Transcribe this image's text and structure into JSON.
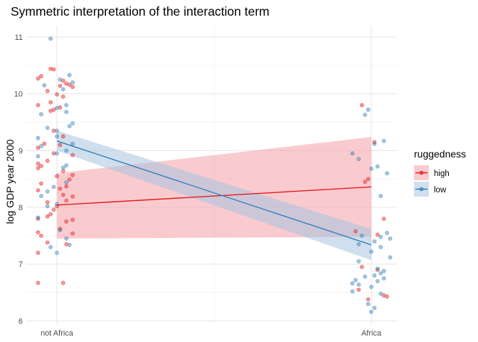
{
  "chart_data": {
    "type": "scatter",
    "title": "Symmetric interpretation of the interaction term",
    "xlabel": "",
    "ylabel": "log GDP year 2000",
    "categories": [
      "not Africa",
      "Africa"
    ],
    "ylim": [
      5.93,
      11.2
    ],
    "yticks": [
      6,
      7,
      8,
      9,
      10,
      11
    ],
    "grid": true,
    "legend": {
      "title": "ruggedness",
      "position": "right"
    },
    "series": [
      {
        "name": "high",
        "color": "#e41a1c",
        "fit_line": {
          "not Africa": 8.04,
          "Africa": 8.36
        },
        "ribbon": {
          "not Africa": [
            7.45,
            8.6
          ],
          "Africa": [
            7.48,
            9.24
          ]
        },
        "points": [
          {
            "x": "not Africa",
            "y": 10.44,
            "jitter": -0.02
          },
          {
            "x": "not Africa",
            "y": 10.43,
            "jitter": -0.01
          },
          {
            "x": "not Africa",
            "y": 10.31,
            "jitter": -0.05
          },
          {
            "x": "not Africa",
            "y": 10.27,
            "jitter": -0.06
          },
          {
            "x": "not Africa",
            "y": 10.23,
            "jitter": 0.02
          },
          {
            "x": "not Africa",
            "y": 10.18,
            "jitter": 0.03
          },
          {
            "x": "not Africa",
            "y": 10.16,
            "jitter": 0.04
          },
          {
            "x": "not Africa",
            "y": 10.14,
            "jitter": 0.01
          },
          {
            "x": "not Africa",
            "y": 10.12,
            "jitter": 0.05
          },
          {
            "x": "not Africa",
            "y": 10.05,
            "jitter": -0.03
          },
          {
            "x": "not Africa",
            "y": 9.99,
            "jitter": 0.0
          },
          {
            "x": "not Africa",
            "y": 9.95,
            "jitter": 0.02
          },
          {
            "x": "not Africa",
            "y": 9.85,
            "jitter": -0.02
          },
          {
            "x": "not Africa",
            "y": 9.8,
            "jitter": -0.06
          },
          {
            "x": "not Africa",
            "y": 9.76,
            "jitter": 0.01
          },
          {
            "x": "not Africa",
            "y": 9.72,
            "jitter": -0.01
          },
          {
            "x": "not Africa",
            "y": 9.7,
            "jitter": -0.02
          },
          {
            "x": "not Africa",
            "y": 9.35,
            "jitter": -0.01
          },
          {
            "x": "not Africa",
            "y": 9.25,
            "jitter": 0.02
          },
          {
            "x": "not Africa",
            "y": 9.12,
            "jitter": -0.04
          },
          {
            "x": "not Africa",
            "y": 9.1,
            "jitter": 0.01
          },
          {
            "x": "not Africa",
            "y": 9.05,
            "jitter": -0.06
          },
          {
            "x": "not Africa",
            "y": 8.95,
            "jitter": -0.01
          },
          {
            "x": "not Africa",
            "y": 8.92,
            "jitter": 0.05
          },
          {
            "x": "not Africa",
            "y": 8.82,
            "jitter": -0.03
          },
          {
            "x": "not Africa",
            "y": 8.77,
            "jitter": -0.06
          },
          {
            "x": "not Africa",
            "y": 8.73,
            "jitter": -0.05
          },
          {
            "x": "not Africa",
            "y": 8.69,
            "jitter": -0.06
          },
          {
            "x": "not Africa",
            "y": 8.64,
            "jitter": 0.02
          },
          {
            "x": "not Africa",
            "y": 8.57,
            "jitter": 0.05
          },
          {
            "x": "not Africa",
            "y": 8.55,
            "jitter": 0.0
          },
          {
            "x": "not Africa",
            "y": 8.49,
            "jitter": 0.04
          },
          {
            "x": "not Africa",
            "y": 8.42,
            "jitter": -0.05
          },
          {
            "x": "not Africa",
            "y": 8.37,
            "jitter": 0.03
          },
          {
            "x": "not Africa",
            "y": 8.33,
            "jitter": 0.01
          },
          {
            "x": "not Africa",
            "y": 8.3,
            "jitter": -0.06
          },
          {
            "x": "not Africa",
            "y": 8.22,
            "jitter": 0.02
          },
          {
            "x": "not Africa",
            "y": 8.19,
            "jitter": 0.05
          },
          {
            "x": "not Africa",
            "y": 8.12,
            "jitter": 0.03
          },
          {
            "x": "not Africa",
            "y": 8.09,
            "jitter": -0.03
          },
          {
            "x": "not Africa",
            "y": 8.02,
            "jitter": 0.0
          },
          {
            "x": "not Africa",
            "y": 7.96,
            "jitter": -0.01
          },
          {
            "x": "not Africa",
            "y": 7.88,
            "jitter": -0.02
          },
          {
            "x": "not Africa",
            "y": 7.84,
            "jitter": -0.03
          },
          {
            "x": "not Africa",
            "y": 7.8,
            "jitter": -0.06
          },
          {
            "x": "not Africa",
            "y": 7.78,
            "jitter": 0.05
          },
          {
            "x": "not Africa",
            "y": 7.75,
            "jitter": 0.03
          },
          {
            "x": "not Africa",
            "y": 7.62,
            "jitter": 0.01
          },
          {
            "x": "not Africa",
            "y": 7.56,
            "jitter": -0.06
          },
          {
            "x": "not Africa",
            "y": 7.54,
            "jitter": 0.05
          },
          {
            "x": "not Africa",
            "y": 7.5,
            "jitter": -0.05
          },
          {
            "x": "not Africa",
            "y": 7.38,
            "jitter": -0.03
          },
          {
            "x": "not Africa",
            "y": 7.35,
            "jitter": 0.03
          },
          {
            "x": "not Africa",
            "y": 7.2,
            "jitter": -0.06
          },
          {
            "x": "not Africa",
            "y": 6.67,
            "jitter": -0.06
          },
          {
            "x": "not Africa",
            "y": 6.67,
            "jitter": 0.02
          },
          {
            "x": "Africa",
            "y": 9.8,
            "jitter": -0.03
          },
          {
            "x": "Africa",
            "y": 9.15,
            "jitter": 0.01
          },
          {
            "x": "Africa",
            "y": 8.5,
            "jitter": -0.01
          },
          {
            "x": "Africa",
            "y": 8.45,
            "jitter": -0.02
          },
          {
            "x": "Africa",
            "y": 7.8,
            "jitter": 0.04
          },
          {
            "x": "Africa",
            "y": 7.58,
            "jitter": -0.05
          },
          {
            "x": "Africa",
            "y": 7.52,
            "jitter": 0.02
          },
          {
            "x": "Africa",
            "y": 6.95,
            "jitter": -0.03
          },
          {
            "x": "Africa",
            "y": 6.9,
            "jitter": 0.02
          },
          {
            "x": "Africa",
            "y": 6.55,
            "jitter": -0.04
          },
          {
            "x": "Africa",
            "y": 6.45,
            "jitter": 0.04
          },
          {
            "x": "Africa",
            "y": 6.43,
            "jitter": 0.05
          },
          {
            "x": "Africa",
            "y": 6.38,
            "jitter": -0.01
          }
        ]
      },
      {
        "name": "low",
        "color": "#377eb8",
        "fit_line": {
          "not Africa": 9.17,
          "Africa": 7.34
        },
        "ribbon": {
          "not Africa": [
            9.0,
            9.35
          ],
          "Africa": [
            7.07,
            7.62
          ]
        },
        "points": [
          {
            "x": "not Africa",
            "y": 10.97,
            "jitter": -0.02
          },
          {
            "x": "not Africa",
            "y": 10.33,
            "jitter": 0.04
          },
          {
            "x": "not Africa",
            "y": 10.25,
            "jitter": 0.01
          },
          {
            "x": "not Africa",
            "y": 10.2,
            "jitter": 0.05
          },
          {
            "x": "not Africa",
            "y": 10.15,
            "jitter": -0.04
          },
          {
            "x": "not Africa",
            "y": 10.08,
            "jitter": 0.02
          },
          {
            "x": "not Africa",
            "y": 9.8,
            "jitter": 0.03
          },
          {
            "x": "not Africa",
            "y": 9.75,
            "jitter": 0.0
          },
          {
            "x": "not Africa",
            "y": 9.68,
            "jitter": 0.03
          },
          {
            "x": "not Africa",
            "y": 9.64,
            "jitter": -0.05
          },
          {
            "x": "not Africa",
            "y": 9.48,
            "jitter": 0.05
          },
          {
            "x": "not Africa",
            "y": 9.43,
            "jitter": 0.04
          },
          {
            "x": "not Africa",
            "y": 9.4,
            "jitter": -0.03
          },
          {
            "x": "not Africa",
            "y": 9.35,
            "jitter": 0.0
          },
          {
            "x": "not Africa",
            "y": 9.25,
            "jitter": 0.0
          },
          {
            "x": "not Africa",
            "y": 9.22,
            "jitter": -0.06
          },
          {
            "x": "not Africa",
            "y": 9.12,
            "jitter": 0.05
          },
          {
            "x": "not Africa",
            "y": 9.08,
            "jitter": -0.05
          },
          {
            "x": "not Africa",
            "y": 9.0,
            "jitter": 0.03
          },
          {
            "x": "not Africa",
            "y": 8.95,
            "jitter": 0.0
          },
          {
            "x": "not Africa",
            "y": 8.9,
            "jitter": -0.06
          },
          {
            "x": "not Africa",
            "y": 8.74,
            "jitter": 0.03
          },
          {
            "x": "not Africa",
            "y": 8.7,
            "jitter": 0.02
          },
          {
            "x": "not Africa",
            "y": 8.44,
            "jitter": 0.03
          },
          {
            "x": "not Africa",
            "y": 8.36,
            "jitter": -0.01
          },
          {
            "x": "not Africa",
            "y": 8.28,
            "jitter": -0.03
          },
          {
            "x": "not Africa",
            "y": 8.2,
            "jitter": -0.05
          },
          {
            "x": "not Africa",
            "y": 8.06,
            "jitter": 0.0
          },
          {
            "x": "not Africa",
            "y": 8.02,
            "jitter": -0.03
          },
          {
            "x": "not Africa",
            "y": 7.82,
            "jitter": -0.06
          },
          {
            "x": "not Africa",
            "y": 7.6,
            "jitter": 0.01
          },
          {
            "x": "not Africa",
            "y": 7.45,
            "jitter": 0.03
          },
          {
            "x": "not Africa",
            "y": 7.34,
            "jitter": 0.04
          },
          {
            "x": "not Africa",
            "y": 7.3,
            "jitter": -0.02
          },
          {
            "x": "not Africa",
            "y": 7.2,
            "jitter": 0.0
          },
          {
            "x": "Africa",
            "y": 9.72,
            "jitter": -0.01
          },
          {
            "x": "Africa",
            "y": 9.63,
            "jitter": -0.02
          },
          {
            "x": "Africa",
            "y": 9.17,
            "jitter": 0.04
          },
          {
            "x": "Africa",
            "y": 9.12,
            "jitter": 0.01
          },
          {
            "x": "Africa",
            "y": 8.95,
            "jitter": -0.06
          },
          {
            "x": "Africa",
            "y": 8.85,
            "jitter": -0.04
          },
          {
            "x": "Africa",
            "y": 8.72,
            "jitter": 0.02
          },
          {
            "x": "Africa",
            "y": 8.68,
            "jitter": 0.0
          },
          {
            "x": "Africa",
            "y": 8.6,
            "jitter": 0.05
          },
          {
            "x": "Africa",
            "y": 8.2,
            "jitter": 0.03
          },
          {
            "x": "Africa",
            "y": 7.55,
            "jitter": 0.05
          },
          {
            "x": "Africa",
            "y": 7.5,
            "jitter": -0.03
          },
          {
            "x": "Africa",
            "y": 7.48,
            "jitter": 0.03
          },
          {
            "x": "Africa",
            "y": 7.45,
            "jitter": 0.06
          },
          {
            "x": "Africa",
            "y": 7.4,
            "jitter": 0.01
          },
          {
            "x": "Africa",
            "y": 7.35,
            "jitter": -0.04
          },
          {
            "x": "Africa",
            "y": 7.3,
            "jitter": 0.03
          },
          {
            "x": "Africa",
            "y": 7.22,
            "jitter": 0.0
          },
          {
            "x": "Africa",
            "y": 7.12,
            "jitter": 0.06
          },
          {
            "x": "Africa",
            "y": 7.05,
            "jitter": -0.04
          },
          {
            "x": "Africa",
            "y": 6.92,
            "jitter": 0.02
          },
          {
            "x": "Africa",
            "y": 6.88,
            "jitter": 0.04
          },
          {
            "x": "Africa",
            "y": 6.84,
            "jitter": 0.03
          },
          {
            "x": "Africa",
            "y": 6.8,
            "jitter": 0.01
          },
          {
            "x": "Africa",
            "y": 6.78,
            "jitter": -0.02
          },
          {
            "x": "Africa",
            "y": 6.75,
            "jitter": 0.04
          },
          {
            "x": "Africa",
            "y": 6.72,
            "jitter": -0.05
          },
          {
            "x": "Africa",
            "y": 6.7,
            "jitter": 0.02
          },
          {
            "x": "Africa",
            "y": 6.66,
            "jitter": -0.06
          },
          {
            "x": "Africa",
            "y": 6.64,
            "jitter": -0.04
          },
          {
            "x": "Africa",
            "y": 6.6,
            "jitter": 0.0
          },
          {
            "x": "Africa",
            "y": 6.52,
            "jitter": -0.06
          },
          {
            "x": "Africa",
            "y": 6.48,
            "jitter": 0.03
          },
          {
            "x": "Africa",
            "y": 6.3,
            "jitter": -0.01
          },
          {
            "x": "Africa",
            "y": 6.23,
            "jitter": 0.01
          },
          {
            "x": "Africa",
            "y": 6.16,
            "jitter": 0.0
          }
        ]
      }
    ]
  }
}
